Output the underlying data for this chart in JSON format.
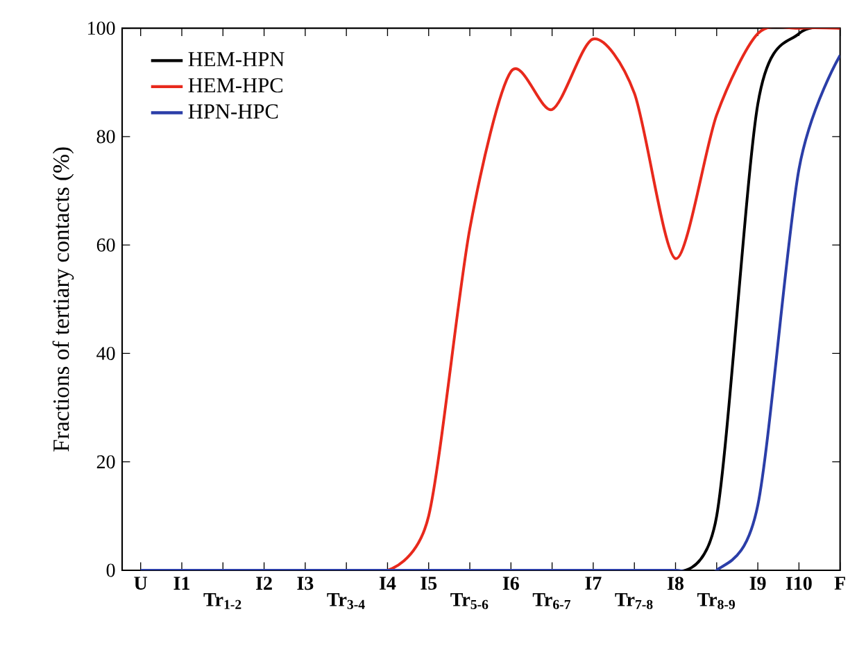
{
  "chart_data": {
    "type": "line",
    "ylabel": "Fractions of tertiary contacts (%)",
    "categories": [
      "U",
      "I1",
      "Tr$_{1-2}$",
      "I2",
      "I3",
      "Tr$_{3-4}$",
      "I4",
      "I5",
      "Tr$_{5-6}$",
      "I6",
      "Tr$_{6-7}$",
      "I7",
      "Tr$_{7-8}$",
      "I8",
      "Tr$_{8-9}$",
      "I9",
      "I10",
      "F"
    ],
    "series": [
      {
        "name": "HEM-HPN",
        "color": "#000000",
        "values": [
          null,
          null,
          null,
          null,
          null,
          null,
          null,
          null,
          null,
          null,
          null,
          null,
          null,
          0,
          10,
          86,
          99,
          100
        ]
      },
      {
        "name": "HEM-HPC",
        "color": "#e8291c",
        "values": [
          null,
          null,
          null,
          null,
          null,
          null,
          0,
          10,
          63,
          92,
          85,
          98,
          88,
          57.5,
          84,
          99,
          100,
          100
        ]
      },
      {
        "name": "HPN-HPC",
        "color": "#2b3ea8",
        "values": [
          0,
          0,
          0,
          0,
          0,
          0,
          0,
          0,
          0,
          0,
          0,
          0,
          0,
          0,
          0,
          12,
          74,
          95
        ]
      }
    ],
    "ylim": [
      0,
      100
    ],
    "yticks": [
      0,
      20,
      40,
      60,
      80,
      100
    ],
    "legend": "top left"
  }
}
